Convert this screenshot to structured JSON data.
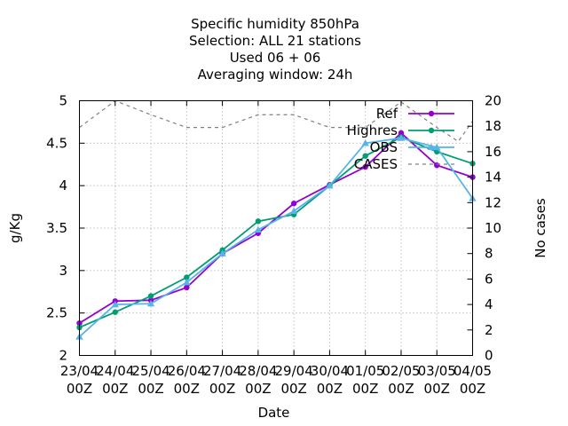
{
  "chart_data": {
    "type": "line",
    "title_lines": [
      "Specific humidity 850hPa",
      "Selection: ALL      21 stations",
      "Used  06 + 06",
      "Averaging window: 24h"
    ],
    "xlabel": "Date",
    "ylabel": "g/Kg",
    "y2label": "No cases",
    "categories": [
      "23/04 00Z",
      "24/04 00Z",
      "25/04 00Z",
      "26/04 00Z",
      "27/04 00Z",
      "28/04 00Z",
      "29/04 00Z",
      "30/04 00Z",
      "01/05 00Z",
      "02/05 00Z",
      "03/05 00Z",
      "04/05 00Z"
    ],
    "category_lines": [
      [
        "23/04",
        "00Z"
      ],
      [
        "24/04",
        "00Z"
      ],
      [
        "25/04",
        "00Z"
      ],
      [
        "26/04",
        "00Z"
      ],
      [
        "27/04",
        "00Z"
      ],
      [
        "28/04",
        "00Z"
      ],
      [
        "29/04",
        "00Z"
      ],
      [
        "30/04",
        "00Z"
      ],
      [
        "01/05",
        "00Z"
      ],
      [
        "02/05",
        "00Z"
      ],
      [
        "03/05",
        "00Z"
      ],
      [
        "04/05",
        "00Z"
      ]
    ],
    "ylim": [
      2,
      5
    ],
    "yticks": [
      "2",
      "2.5",
      "3",
      "3.5",
      "4",
      "4.5",
      "5"
    ],
    "y2lim": [
      0,
      20
    ],
    "y2ticks": [
      "0",
      "2",
      "4",
      "6",
      "8",
      "10",
      "12",
      "14",
      "16",
      "18",
      "20"
    ],
    "grid": true,
    "legend_position": "top-right",
    "series": [
      {
        "name": "Ref",
        "color": "#9400d3",
        "marker": "circle",
        "axis": "y1",
        "x": [
          0,
          1,
          2,
          3,
          4,
          5,
          6,
          7,
          8,
          9,
          10,
          11
        ],
        "values": [
          2.38,
          2.64,
          2.65,
          2.8,
          3.2,
          3.44,
          3.79,
          4.01,
          4.22,
          4.62,
          4.24,
          4.1
        ]
      },
      {
        "name": "Highres",
        "color": "#009e73",
        "marker": "circle",
        "axis": "y1",
        "x": [
          0,
          1,
          2,
          3,
          4,
          5,
          6,
          7,
          8,
          9,
          10,
          11
        ],
        "values": [
          2.33,
          2.51,
          2.7,
          2.92,
          3.24,
          3.58,
          3.66,
          4.0,
          4.35,
          4.57,
          4.4,
          4.26
        ]
      },
      {
        "name": "OBS",
        "color": "#56b4e9",
        "marker": "triangle",
        "axis": "y1",
        "x": [
          0,
          1,
          2,
          3,
          4,
          5,
          6,
          7,
          8,
          9,
          10,
          11
        ],
        "values": [
          2.22,
          2.6,
          2.61,
          2.86,
          3.2,
          3.48,
          3.7,
          4.0,
          4.5,
          4.56,
          4.45,
          3.85
        ]
      },
      {
        "name": "CASES",
        "color": "#808080",
        "dash": true,
        "axis": "y2",
        "x": [
          0,
          1,
          2,
          3,
          4,
          5,
          6,
          7,
          8,
          9,
          10,
          10.6,
          11
        ],
        "values": [
          17.9,
          20,
          18.9,
          17.9,
          17.9,
          18.9,
          18.9,
          17.9,
          17.9,
          19.9,
          17.9,
          16.8,
          18.4
        ]
      }
    ]
  }
}
